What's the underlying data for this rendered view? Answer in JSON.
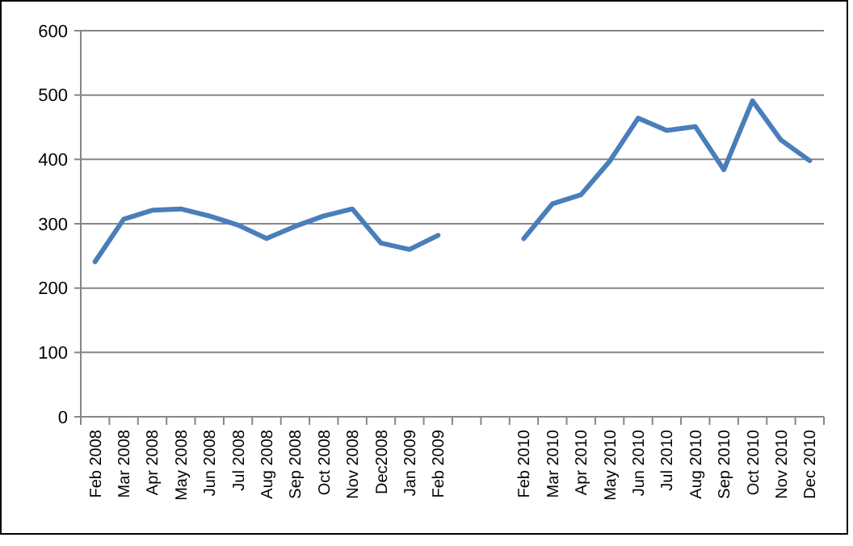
{
  "chart_data": {
    "type": "line",
    "categories": [
      "Feb 2008",
      "Mar 2008",
      "Apr 2008",
      "May 2008",
      "Jun 2008",
      "Jul 2008",
      "Aug 2008",
      "Sep 2008",
      "Oct 2008",
      "Nov 2008",
      "Dec2008",
      "Jan 2009",
      "Feb 2009",
      null,
      null,
      "Feb 2010",
      "Mar 2010",
      "Apr 2010",
      "May 2010",
      "Jun 2010",
      "Jul 2010",
      "Aug 2010",
      "Sep 2010",
      "Oct 2010",
      "Nov 2010",
      "Dec 2010"
    ],
    "series": [
      {
        "color": "#4a7ebb",
        "values": [
          241,
          307,
          321,
          323,
          312,
          298,
          277,
          296,
          312,
          323,
          270,
          260,
          282,
          null,
          null,
          277,
          331,
          345,
          397,
          464,
          445,
          451,
          384,
          491,
          430,
          398
        ]
      }
    ],
    "ylim": [
      0,
      600
    ],
    "yticks": [
      0,
      100,
      200,
      300,
      400,
      500,
      600
    ],
    "grid": "y",
    "marker": "none",
    "line_style": "solid"
  }
}
